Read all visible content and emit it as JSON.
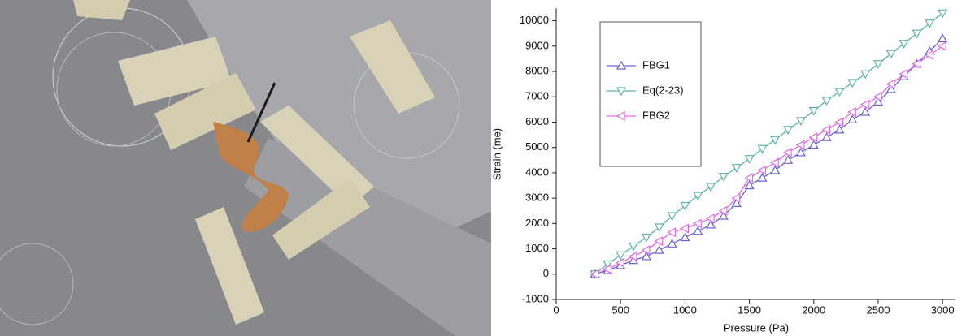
{
  "chart_data": {
    "type": "line",
    "xlabel": "Pressure (Pa)",
    "ylabel": "Strain (me)",
    "xlim": [
      0,
      3100
    ],
    "ylim": [
      -1000,
      10500
    ],
    "xticks": [
      0,
      500,
      1000,
      1500,
      2000,
      2500,
      3000
    ],
    "yticks": [
      -1000,
      0,
      1000,
      2000,
      3000,
      4000,
      5000,
      6000,
      7000,
      8000,
      9000,
      10000
    ],
    "x": [
      300,
      400,
      500,
      600,
      700,
      800,
      900,
      1000,
      1100,
      1200,
      1300,
      1400,
      1500,
      1600,
      1700,
      1800,
      1900,
      2000,
      2100,
      2200,
      2300,
      2400,
      2500,
      2600,
      2700,
      2800,
      2900,
      3000
    ],
    "series": [
      {
        "name": "FBG1",
        "color": "#6b63d6",
        "marker": "triangle-up",
        "values": [
          0,
          150,
          350,
          550,
          700,
          950,
          1200,
          1450,
          1700,
          1950,
          2300,
          2800,
          3500,
          3800,
          4100,
          4500,
          4800,
          5100,
          5400,
          5700,
          6100,
          6400,
          6800,
          7300,
          7800,
          8300,
          8800,
          9300
        ]
      },
      {
        "name": "Eq(2-23)",
        "color": "#5fb3a8",
        "marker": "triangle-down",
        "values": [
          0,
          400,
          750,
          1100,
          1450,
          1850,
          2300,
          2700,
          3100,
          3450,
          3850,
          4200,
          4550,
          4950,
          5300,
          5700,
          6050,
          6450,
          6850,
          7200,
          7550,
          7900,
          8300,
          8700,
          9100,
          9500,
          9900,
          10300
        ]
      },
      {
        "name": "FBG2",
        "color": "#e36ae6",
        "marker": "triangle-left",
        "values": [
          0,
          200,
          450,
          700,
          950,
          1300,
          1650,
          1800,
          2000,
          2200,
          2500,
          3000,
          3800,
          4100,
          4400,
          4800,
          5100,
          5400,
          5700,
          6000,
          6400,
          6700,
          7000,
          7500,
          7900,
          8300,
          8650,
          9000
        ]
      }
    ]
  }
}
